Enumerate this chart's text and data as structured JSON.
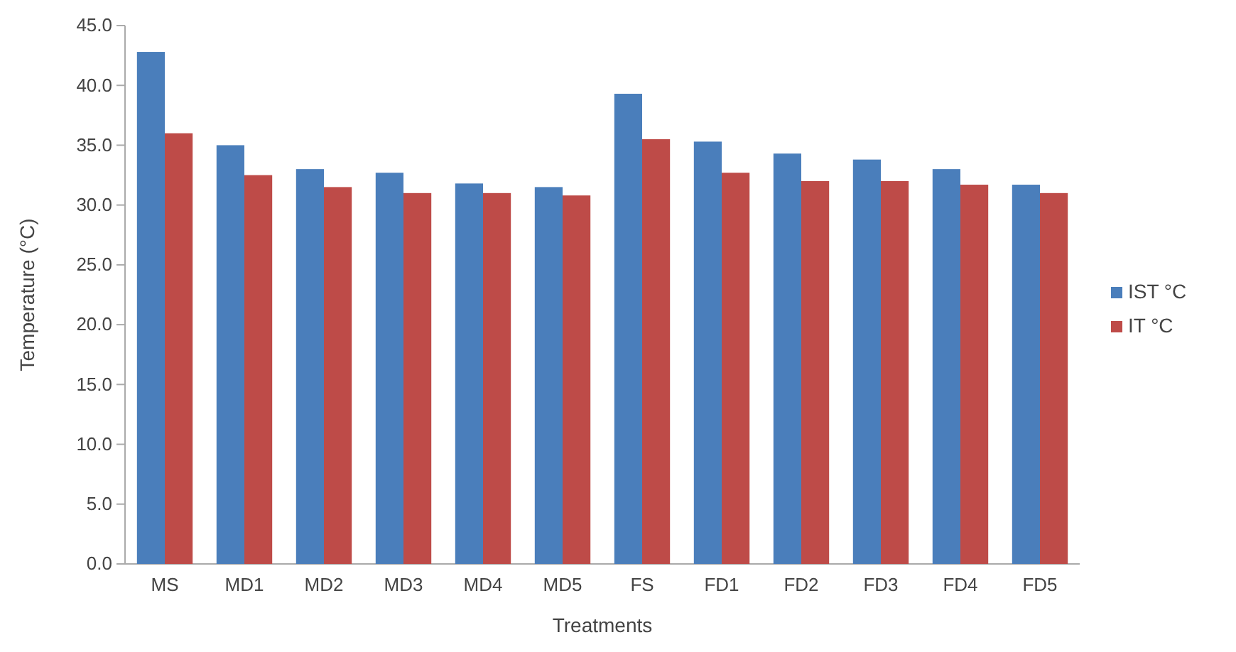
{
  "chart_data": {
    "type": "bar",
    "xlabel": "Treatments",
    "ylabel": "Temperature (°C)",
    "categories": [
      "MS",
      "MD1",
      "MD2",
      "MD3",
      "MD4",
      "MD5",
      "FS",
      "FD1",
      "FD2",
      "FD3",
      "FD4",
      "FD5"
    ],
    "series": [
      {
        "name": "IST °C",
        "color": "#4a7ebb",
        "values": [
          42.8,
          35.0,
          33.0,
          32.7,
          31.8,
          31.5,
          39.3,
          35.3,
          34.3,
          33.8,
          33.0,
          31.7
        ]
      },
      {
        "name": "IT °C",
        "color": "#be4b48",
        "values": [
          36.0,
          32.5,
          31.5,
          31.0,
          31.0,
          30.8,
          35.5,
          32.7,
          32.0,
          32.0,
          31.7,
          31.0
        ]
      }
    ],
    "ylim": [
      0,
      45
    ],
    "yticks": [
      {
        "value": 0,
        "label": "0.0"
      },
      {
        "value": 5,
        "label": "5.0"
      },
      {
        "value": 10,
        "label": "10.0"
      },
      {
        "value": 15,
        "label": "15.0"
      },
      {
        "value": 20,
        "label": "20.0"
      },
      {
        "value": 25,
        "label": "25.0"
      },
      {
        "value": 30,
        "label": "30.0"
      },
      {
        "value": 35,
        "label": "35.0"
      },
      {
        "value": 40,
        "label": "40.0"
      },
      {
        "value": 45,
        "label": "45.0"
      }
    ],
    "grid": false,
    "legend": "right"
  }
}
